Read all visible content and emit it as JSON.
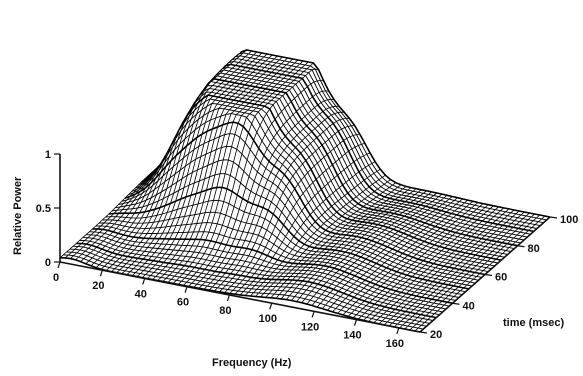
{
  "chart_data": {
    "type": "surface",
    "xlabel": "Frequency (Hz)",
    "ylabel": "time (msec)",
    "zlabel": "Relative Power",
    "xlim": [
      0,
      170
    ],
    "ylim": [
      20,
      100
    ],
    "zlim": [
      0,
      1
    ],
    "x_ticks": [
      0,
      20,
      40,
      60,
      80,
      100,
      120,
      140,
      160
    ],
    "y_ticks": [
      20,
      40,
      60,
      80,
      100
    ],
    "z_ticks": [
      0,
      0.5,
      1
    ],
    "z_tick_labels": [
      "0",
      "0.5",
      "1"
    ],
    "ridges": [
      {
        "freq": 22,
        "peak_time": 100,
        "height": 0.72
      },
      {
        "freq": 38,
        "peak_time": 95,
        "height": 0.85
      },
      {
        "freq": 55,
        "peak_time": 92,
        "height": 1.0
      },
      {
        "freq": 75,
        "peak_time": 88,
        "height": 0.55
      },
      {
        "freq": 110,
        "peak_time": 60,
        "height": 0.12
      }
    ],
    "grid": false,
    "legend": "none"
  }
}
